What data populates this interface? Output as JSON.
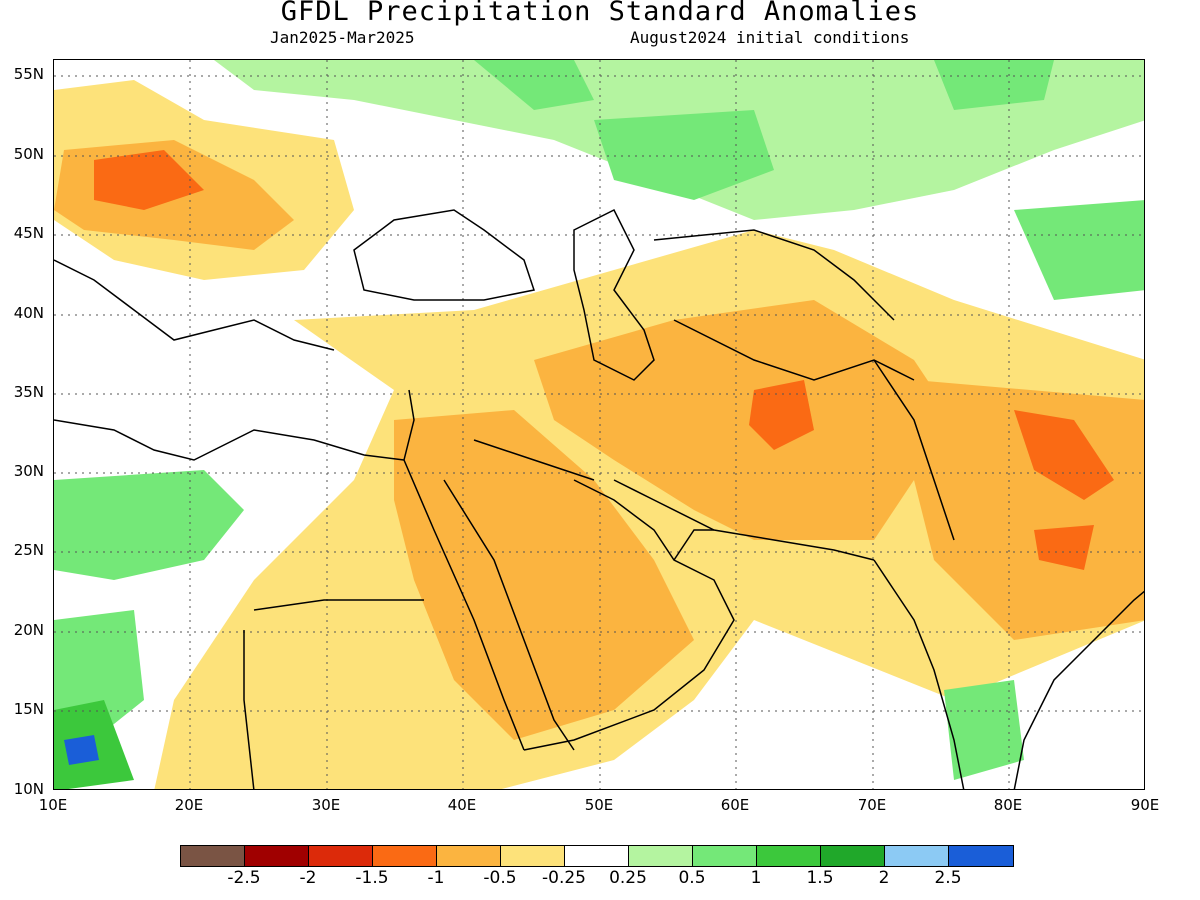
{
  "title": "GFDL Precipitation Standard Anomalies",
  "period": "Jan2025-Mar2025",
  "initial_conditions": "August2024 initial conditions",
  "map": {
    "lon_range": [
      10,
      90
    ],
    "lat_range": [
      10,
      56
    ],
    "lat_labels": [
      "55N",
      "50N",
      "45N",
      "40N",
      "35N",
      "30N",
      "25N",
      "20N",
      "15N",
      "10N"
    ],
    "lon_labels": [
      "10E",
      "20E",
      "30E",
      "40E",
      "50E",
      "60E",
      "70E",
      "80E",
      "90E"
    ],
    "grid_lines": "dotted"
  },
  "colorbar": {
    "colors": [
      "#7a5444",
      "#a00000",
      "#dc2a0a",
      "#fa6a14",
      "#fbb440",
      "#fde27a",
      "#ffffff",
      "#b4f4a0",
      "#74e878",
      "#3cc83c",
      "#20a82a",
      "#8ccaf4",
      "#1a5ed8"
    ],
    "labels": [
      "-2.5",
      "-2",
      "-1.5",
      "-1",
      "-0.5",
      "-0.25",
      "0.25",
      "0.5",
      "1",
      "1.5",
      "2",
      "2.5"
    ]
  }
}
